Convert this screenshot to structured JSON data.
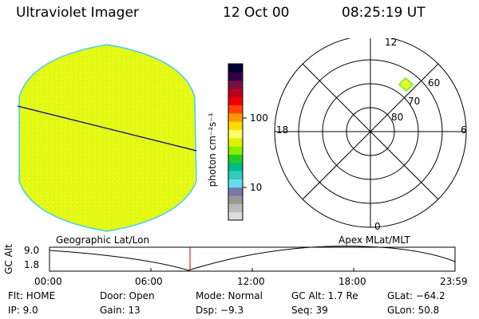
{
  "header": {
    "title": "Ultraviolet Imager",
    "date": "12 Oct 00",
    "time": "08:25:19 UT"
  },
  "colorbar": {
    "label": "photon cm⁻²s⁻¹",
    "ticks": [
      "100",
      "10"
    ],
    "colors": [
      "#dddddd",
      "#bbbbbb",
      "#999999",
      "#7777aa",
      "#66ddee",
      "#33ccbb",
      "#00bb88",
      "#22cc22",
      "#88ee00",
      "#ddf000",
      "#ffff66",
      "#ffdd00",
      "#ff9900",
      "#ff4400",
      "#ee0000",
      "#bb0022",
      "#771144",
      "#330044",
      "#000033"
    ]
  },
  "polar": {
    "labels": {
      "top": "12",
      "left": "18",
      "right": "6",
      "bottom": "0"
    },
    "rings": [
      "60",
      "70",
      "80"
    ]
  },
  "panels": {
    "left_title": "Geographic Lat/Lon",
    "right_title": "Apex MLat/MLT"
  },
  "alt_plot": {
    "ylabel": "GC Alt",
    "yticks": [
      "9.0",
      "1.8"
    ],
    "xticks": [
      "00:00",
      "06:00",
      "12:00",
      "18:00",
      "23:59"
    ],
    "cursor_color": "#cc0000"
  },
  "info": {
    "row1": {
      "flt": "Flt: HOME",
      "door": "Door: Open",
      "mode": "Mode: Normal",
      "gcalt": "GC Alt: 1.7 Re",
      "glat": "GLat: −64.2"
    },
    "row2": {
      "ip": "IP: 9.0",
      "gain": "Gain: 13",
      "dsp": "Dsp:  −9.3",
      "seq": "Seq: 39",
      "glon": "GLon: 50.8"
    }
  },
  "colors": {
    "disk_fill": "#e4fa14",
    "disk_edge": "#44ccff",
    "patch": "#e8ff20",
    "line": "#000088"
  }
}
